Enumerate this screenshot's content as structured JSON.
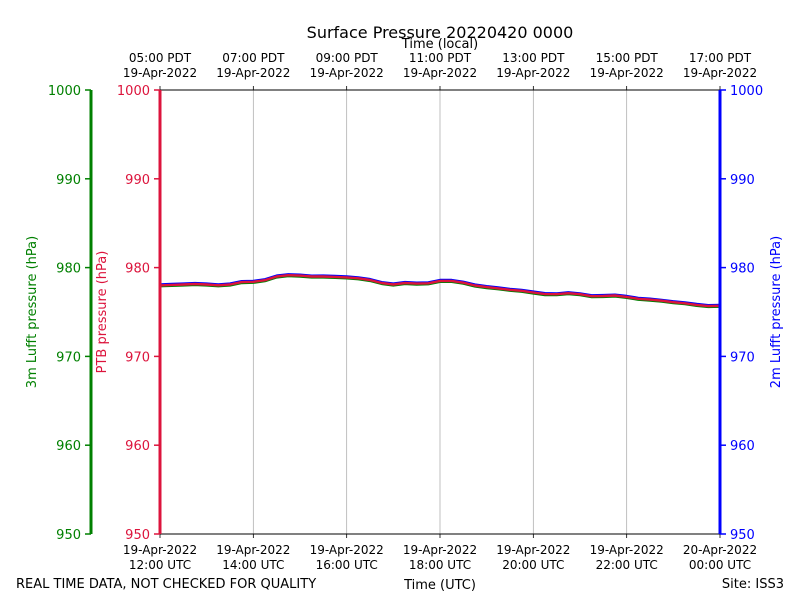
{
  "chart_data": {
    "type": "line",
    "title": "Surface Pressure 20220420 0000",
    "top_xlabel": "Time (local)",
    "xlabel": "Time (UTC)",
    "bottom_ticks": [
      {
        "line1": "19-Apr-2022",
        "line2": "12:00 UTC"
      },
      {
        "line1": "19-Apr-2022",
        "line2": "14:00 UTC"
      },
      {
        "line1": "19-Apr-2022",
        "line2": "16:00 UTC"
      },
      {
        "line1": "19-Apr-2022",
        "line2": "18:00 UTC"
      },
      {
        "line1": "19-Apr-2022",
        "line2": "20:00 UTC"
      },
      {
        "line1": "19-Apr-2022",
        "line2": "22:00 UTC"
      },
      {
        "line1": "20-Apr-2022",
        "line2": "00:00 UTC"
      }
    ],
    "top_ticks": [
      {
        "line1": "05:00 PDT",
        "line2": "19-Apr-2022"
      },
      {
        "line1": "07:00 PDT",
        "line2": "19-Apr-2022"
      },
      {
        "line1": "09:00 PDT",
        "line2": "19-Apr-2022"
      },
      {
        "line1": "11:00 PDT",
        "line2": "19-Apr-2022"
      },
      {
        "line1": "13:00 PDT",
        "line2": "19-Apr-2022"
      },
      {
        "line1": "15:00 PDT",
        "line2": "19-Apr-2022"
      },
      {
        "line1": "17:00 PDT",
        "line2": "19-Apr-2022"
      }
    ],
    "x_hours_utc": [
      12,
      12.5,
      13,
      13.5,
      14,
      14.5,
      15,
      15.5,
      16,
      16.5,
      17,
      17.5,
      18,
      18.5,
      19,
      19.5,
      20,
      20.5,
      21,
      21.5,
      22,
      22.5,
      23,
      23.5,
      24
    ],
    "xlim_hours_utc": [
      12,
      24
    ],
    "ylim": [
      950,
      1000
    ],
    "yticks": [
      950,
      960,
      970,
      980,
      990,
      1000
    ],
    "y_axes": [
      {
        "name": "ptb",
        "label": "PTB pressure (hPa)",
        "color": "#dc143c"
      },
      {
        "name": "lufft3m",
        "label": "3m Lufft pressure (hPa)",
        "color": "#008000"
      },
      {
        "name": "lufft2m",
        "label": "2m Lufft pressure (hPa)",
        "color": "#0000ff"
      }
    ],
    "grid_x": true,
    "series": [
      {
        "axis": "lufft2m",
        "color": "#0000ff",
        "values": [
          978.1,
          978.2,
          978.2,
          978.2,
          978.5,
          979.1,
          979.2,
          979.1,
          979.0,
          978.7,
          978.2,
          978.3,
          978.6,
          978.4,
          977.9,
          977.6,
          977.3,
          977.1,
          977.1,
          976.9,
          976.8,
          976.5,
          976.2,
          975.9,
          975.8
        ]
      },
      {
        "axis": "lufft3m",
        "color": "#008000",
        "values": [
          977.9,
          978.0,
          978.0,
          978.0,
          978.3,
          978.9,
          979.0,
          978.9,
          978.8,
          978.5,
          978.0,
          978.1,
          978.4,
          978.2,
          977.7,
          977.4,
          977.1,
          976.9,
          976.9,
          976.7,
          976.6,
          976.3,
          976.0,
          975.7,
          975.6
        ]
      },
      {
        "axis": "ptb",
        "color": "#dc143c",
        "values": [
          978.0,
          978.1,
          978.1,
          978.1,
          978.4,
          979.0,
          979.1,
          979.0,
          978.9,
          978.6,
          978.1,
          978.2,
          978.5,
          978.3,
          977.8,
          977.5,
          977.2,
          977.0,
          977.0,
          976.8,
          976.7,
          976.4,
          976.1,
          975.8,
          975.7
        ]
      }
    ]
  },
  "footer": {
    "note": "REAL TIME DATA, NOT CHECKED FOR QUALITY",
    "site": "Site: ISS3"
  }
}
